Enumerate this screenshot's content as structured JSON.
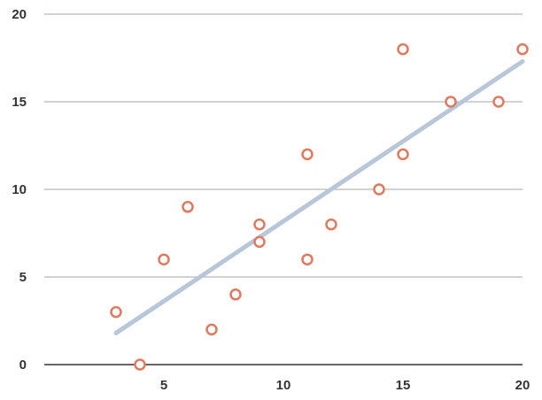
{
  "chart_data": {
    "type": "scatter",
    "title": "",
    "xlabel": "",
    "ylabel": "",
    "xlim": [
      0,
      20
    ],
    "ylim": [
      0,
      20
    ],
    "x_ticks": [
      5,
      10,
      15,
      20
    ],
    "y_ticks": [
      0,
      5,
      10,
      15,
      20
    ],
    "x_tick_labels": [
      "5",
      "10",
      "15",
      "20"
    ],
    "y_tick_labels": [
      "0",
      "5",
      "10",
      "15",
      "20"
    ],
    "grid": "horizontal",
    "legend": "none",
    "points": [
      {
        "x": 3,
        "y": 3
      },
      {
        "x": 4,
        "y": 0
      },
      {
        "x": 5,
        "y": 6
      },
      {
        "x": 6,
        "y": 9
      },
      {
        "x": 7,
        "y": 2
      },
      {
        "x": 8,
        "y": 4
      },
      {
        "x": 9,
        "y": 7
      },
      {
        "x": 9,
        "y": 8
      },
      {
        "x": 11,
        "y": 6
      },
      {
        "x": 11,
        "y": 12
      },
      {
        "x": 12,
        "y": 8
      },
      {
        "x": 14,
        "y": 10
      },
      {
        "x": 15,
        "y": 12
      },
      {
        "x": 15,
        "y": 18
      },
      {
        "x": 17,
        "y": 15
      },
      {
        "x": 19,
        "y": 15
      },
      {
        "x": 20,
        "y": 18
      }
    ],
    "trendline": {
      "from": {
        "x": 3,
        "y": 1.8
      },
      "to": {
        "x": 20,
        "y": 17.3
      }
    },
    "colors": {
      "marker_stroke": "#e07a5f",
      "marker_fill": "#ffffff",
      "trendline": "#b7c6d8",
      "gridline": "#888888",
      "axis_text": "#333333"
    }
  }
}
